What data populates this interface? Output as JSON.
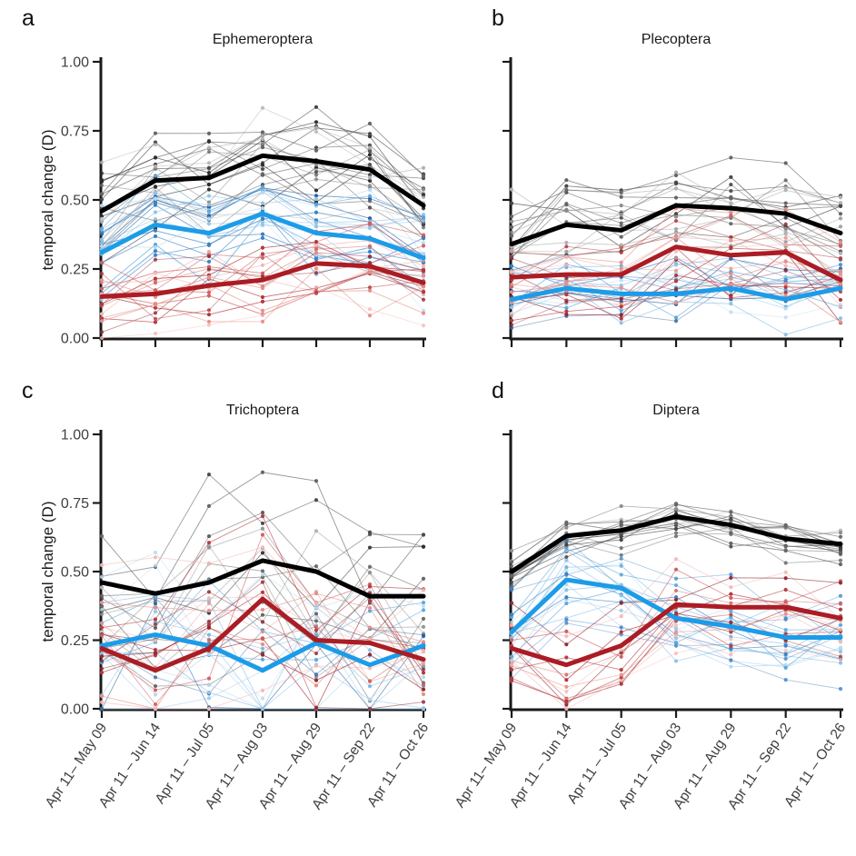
{
  "figure": {
    "background": "#ffffff",
    "ylabel": "temporal change (D)",
    "y_tick_labels": [
      "0.00",
      "0.25",
      "0.50",
      "0.75",
      "1.00"
    ],
    "y_tick_values": [
      0,
      0.25,
      0.5,
      0.75,
      1
    ],
    "x_tick_labels": [
      "Apr 11– May 09",
      "Apr 11 – Jun 14",
      "Apr 11 – Jul 05",
      "Apr 11 – Aug 03",
      "Apr 11 – Aug 29",
      "Apr 11 – Sep 22",
      "Apr 11 – Oct 26"
    ]
  },
  "colors": {
    "axis": "#1a1a1a",
    "tick_label": "#3f3f3f",
    "mean_black": "#000000",
    "mean_blue": "#1c9ce8",
    "mean_red": "#ab1c24",
    "thin_gray_shades": [
      "#b3b3b3",
      "#8c8c8c",
      "#666666",
      "#474747",
      "#2b2b2b"
    ],
    "thin_blue_shades": [
      "#b8d9f0",
      "#8fc3e8",
      "#5ca8dc",
      "#3b82c4",
      "#2b5f9e"
    ],
    "thin_red_shades": [
      "#f2b8b4",
      "#e59089",
      "#d06060",
      "#b23a3f",
      "#8f2a33"
    ]
  },
  "chart_data": [
    {
      "type": "line",
      "panel_label": "a",
      "title": "Ephemeroptera",
      "ylabel": "temporal change (D)",
      "ylim": [
        0,
        1
      ],
      "x_categories": [
        "Apr 11– May 09",
        "Apr 11 – Jun 14",
        "Apr 11 – Jul 05",
        "Apr 11 – Aug 03",
        "Apr 11 – Aug 29",
        "Apr 11 – Sep 22",
        "Apr 11 – Oct 26"
      ],
      "series": [
        {
          "name": "mean-black",
          "color": "#000000",
          "width": 5,
          "values": [
            0.46,
            0.57,
            0.58,
            0.66,
            0.64,
            0.61,
            0.48
          ]
        },
        {
          "name": "mean-blue",
          "color": "#1c9ce8",
          "width": 5,
          "values": [
            0.31,
            0.41,
            0.38,
            0.45,
            0.38,
            0.36,
            0.29
          ]
        },
        {
          "name": "mean-red",
          "color": "#ab1c24",
          "width": 5,
          "values": [
            0.15,
            0.16,
            0.19,
            0.21,
            0.27,
            0.26,
            0.2
          ]
        }
      ],
      "ensembles": [
        {
          "name": "site-lines-gray",
          "family": "gray",
          "follows": 0,
          "n": 20,
          "offset": 0.13,
          "spread": 0.1
        },
        {
          "name": "site-lines-blue",
          "family": "blue",
          "follows": 1,
          "n": 19,
          "offset": 0.13,
          "spread": 0.1
        },
        {
          "name": "site-lines-red",
          "family": "red",
          "follows": 2,
          "n": 18,
          "offset": 0.11,
          "spread": 0.1
        }
      ]
    },
    {
      "type": "line",
      "panel_label": "b",
      "title": "Plecoptera",
      "ylabel": "temporal change (D)",
      "ylim": [
        0,
        1
      ],
      "x_categories": [
        "Apr 11– May 09",
        "Apr 11 – Jun 14",
        "Apr 11 – Jul 05",
        "Apr 11 – Aug 03",
        "Apr 11 – Aug 29",
        "Apr 11 – Sep 22",
        "Apr 11 – Oct 26"
      ],
      "series": [
        {
          "name": "mean-black",
          "color": "#000000",
          "width": 5,
          "values": [
            0.34,
            0.41,
            0.39,
            0.48,
            0.47,
            0.45,
            0.38
          ]
        },
        {
          "name": "mean-blue",
          "color": "#1c9ce8",
          "width": 5,
          "values": [
            0.14,
            0.18,
            0.16,
            0.16,
            0.18,
            0.14,
            0.18
          ]
        },
        {
          "name": "mean-red",
          "color": "#ab1c24",
          "width": 5,
          "values": [
            0.22,
            0.23,
            0.23,
            0.33,
            0.3,
            0.31,
            0.21
          ]
        }
      ],
      "ensembles": [
        {
          "name": "site-lines-gray",
          "family": "gray",
          "follows": 0,
          "n": 17,
          "offset": 0.12,
          "spread": 0.11
        },
        {
          "name": "site-lines-blue",
          "family": "blue",
          "follows": 1,
          "n": 17,
          "offset": 0.08,
          "spread": 0.08
        },
        {
          "name": "site-lines-red",
          "family": "red",
          "follows": 2,
          "n": 16,
          "offset": 0.11,
          "spread": 0.1
        }
      ]
    },
    {
      "type": "line",
      "panel_label": "c",
      "title": "Trichoptera",
      "ylabel": "temporal change (D)",
      "ylim": [
        0,
        1
      ],
      "x_categories": [
        "Apr 11– May 09",
        "Apr 11 – Jun 14",
        "Apr 11 – Jul 05",
        "Apr 11 – Aug 03",
        "Apr 11 – Aug 29",
        "Apr 11 – Sep 22",
        "Apr 11 – Oct 26"
      ],
      "series": [
        {
          "name": "mean-black",
          "color": "#000000",
          "width": 5,
          "values": [
            0.46,
            0.42,
            0.46,
            0.54,
            0.5,
            0.41,
            0.41
          ]
        },
        {
          "name": "mean-blue",
          "color": "#1c9ce8",
          "width": 5,
          "values": [
            0.23,
            0.27,
            0.23,
            0.14,
            0.24,
            0.16,
            0.23
          ]
        },
        {
          "name": "mean-red",
          "color": "#ab1c24",
          "width": 5,
          "values": [
            0.22,
            0.14,
            0.22,
            0.4,
            0.25,
            0.24,
            0.18
          ]
        }
      ],
      "ensembles": [
        {
          "name": "site-lines-gray",
          "family": "gray",
          "follows": 0,
          "n": 13,
          "offset": 0.23,
          "spread": 0.21
        },
        {
          "name": "site-lines-blue",
          "family": "blue",
          "follows": 1,
          "n": 14,
          "offset": 0.18,
          "spread": 0.21
        },
        {
          "name": "site-lines-red",
          "family": "red",
          "follows": 2,
          "n": 14,
          "offset": 0.21,
          "spread": 0.21
        }
      ]
    },
    {
      "type": "line",
      "panel_label": "d",
      "title": "Diptera",
      "ylabel": "temporal change (D)",
      "ylim": [
        0,
        1
      ],
      "x_categories": [
        "Apr 11– May 09",
        "Apr 11 – Jun 14",
        "Apr 11 – Jul 05",
        "Apr 11 – Aug 03",
        "Apr 11 – Aug 29",
        "Apr 11 – Sep 22",
        "Apr 11 – Oct 26"
      ],
      "series": [
        {
          "name": "mean-black",
          "color": "#000000",
          "width": 5,
          "values": [
            0.5,
            0.63,
            0.65,
            0.7,
            0.67,
            0.62,
            0.6
          ]
        },
        {
          "name": "mean-blue",
          "color": "#1c9ce8",
          "width": 5,
          "values": [
            0.28,
            0.47,
            0.44,
            0.33,
            0.3,
            0.26,
            0.26
          ]
        },
        {
          "name": "mean-red",
          "color": "#ab1c24",
          "width": 5,
          "values": [
            0.22,
            0.16,
            0.23,
            0.38,
            0.37,
            0.37,
            0.33
          ]
        }
      ],
      "ensembles": [
        {
          "name": "site-lines-gray",
          "family": "gray",
          "follows": 0,
          "n": 16,
          "offset": 0.06,
          "spread": 0.05
        },
        {
          "name": "site-lines-blue",
          "family": "blue",
          "follows": 1,
          "n": 16,
          "offset": 0.11,
          "spread": 0.09
        },
        {
          "name": "site-lines-red",
          "family": "red",
          "follows": 2,
          "n": 14,
          "offset": 0.1,
          "spread": 0.09
        }
      ]
    }
  ]
}
